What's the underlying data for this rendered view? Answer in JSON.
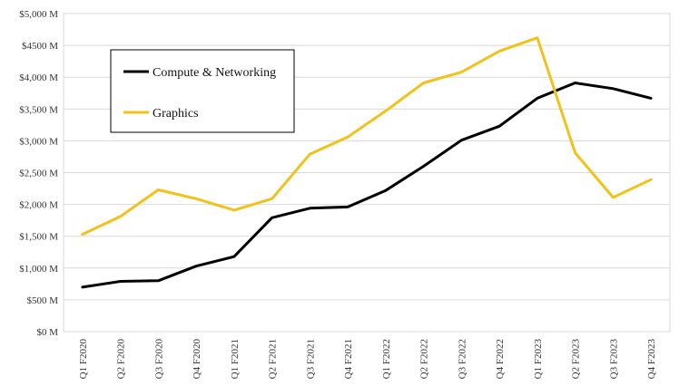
{
  "chart_data": {
    "type": "line",
    "categories": [
      "Q1 F2020",
      "Q2 F2020",
      "Q3 F2020",
      "Q4 F2020",
      "Q1 F2021",
      "Q2 F2021",
      "Q3 F2021",
      "Q4 F2021",
      "Q1 F2022",
      "Q2 F2022",
      "Q3 F2022",
      "Q4 F2022",
      "Q1 F2023",
      "Q2 F2023",
      "Q3 F2023",
      "Q4 F2023"
    ],
    "series": [
      {
        "name": "Compute & Networking",
        "color": "#000000",
        "values": [
          700,
          790,
          800,
          1030,
          1180,
          1790,
          1940,
          1960,
          2220,
          2600,
          3010,
          3230,
          3670,
          3910,
          3820,
          3670
        ]
      },
      {
        "name": "Graphics",
        "color": "#f2c21b",
        "values": [
          1530,
          1810,
          2230,
          2090,
          1910,
          2090,
          2790,
          3060,
          3470,
          3910,
          4080,
          4410,
          4620,
          2810,
          2110,
          2390
        ]
      }
    ],
    "y_ticks": [
      "$0 M",
      "$500 M",
      "$1,000 M",
      "$1,500 M",
      "$2,000 M",
      "$2,500 M",
      "$3,000 M",
      "$3,500 M",
      "$4,000 M",
      "$4500 M",
      "$5,000 M"
    ],
    "ylim": [
      0,
      5000
    ],
    "grid": true,
    "legend": "top-left",
    "title": "",
    "xlabel": "",
    "ylabel": ""
  }
}
